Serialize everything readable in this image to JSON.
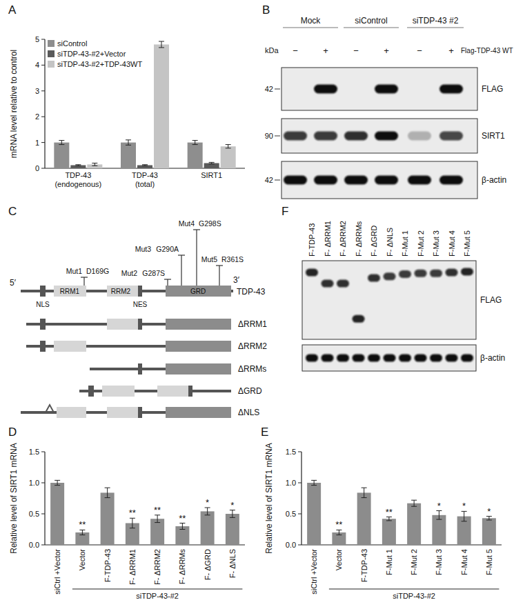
{
  "panel_labels": [
    "A",
    "B",
    "C",
    "D",
    "E",
    "F"
  ],
  "chart_data": [
    {
      "type": "bar",
      "y_label": "mRNA level relative to control",
      "categories": [
        "TDP-43 (endogenous)",
        "TDP-43 (total)",
        "SIRT1"
      ],
      "series": [
        {
          "name": "siControl",
          "color": "#8e8e8e",
          "values": [
            1.0,
            1.0,
            1.0
          ],
          "errors": [
            0.08,
            0.1,
            0.08
          ]
        },
        {
          "name": "siTDP-43-#2+Vector",
          "color": "#5a5a5a",
          "values": [
            0.12,
            0.12,
            0.2
          ],
          "errors": [
            0.02,
            0.02,
            0.03
          ]
        },
        {
          "name": "siTDP-43-#2+TDP-43WT",
          "color": "#c4c4c4",
          "values": [
            0.15,
            4.8,
            0.85
          ],
          "errors": [
            0.05,
            0.12,
            0.07
          ]
        }
      ],
      "ylim": [
        0,
        5
      ],
      "yticks": [
        0,
        1,
        2,
        3,
        4,
        5
      ],
      "legend": "top-left"
    },
    {
      "type": "bar",
      "y_label": "Relative level of SIRT1 mRNA",
      "categories": [
        "siCtrl +Vector",
        "Vector",
        "F-TDP-43",
        "F- ΔRRM1",
        "F- ΔRRM2",
        "F- ΔRRMs",
        "F- ΔGRD",
        "F- ΔNLS"
      ],
      "values": [
        1.0,
        0.2,
        0.84,
        0.35,
        0.42,
        0.3,
        0.54,
        0.5
      ],
      "errors": [
        0.04,
        0.04,
        0.08,
        0.08,
        0.06,
        0.05,
        0.06,
        0.06
      ],
      "annotations": [
        null,
        "**",
        null,
        "**",
        "**",
        "**",
        "*",
        "*"
      ],
      "group_label": "siTDP-43-#2",
      "color": "#8c8c8c",
      "ylim": [
        0,
        1.5
      ],
      "yticks": [
        {
          "value": 0,
          "label": "0.0"
        },
        {
          "value": 0.5,
          "label": "0.5"
        },
        {
          "value": 1,
          "label": "1.0"
        },
        {
          "value": 1.5,
          "label": "1.5"
        }
      ]
    },
    {
      "type": "bar",
      "y_label": "Relative level of SIRT1 mRNA",
      "categories": [
        "siCtrl +Vector",
        "Vector",
        "F-TDP-43",
        "F-Mut 1",
        "F-Mut 2",
        "F-Mut 3",
        "F-Mut 4",
        "F-Mut 5"
      ],
      "values": [
        1.0,
        0.2,
        0.84,
        0.42,
        0.67,
        0.48,
        0.46,
        0.43
      ],
      "errors": [
        0.04,
        0.04,
        0.08,
        0.03,
        0.05,
        0.07,
        0.08,
        0.03
      ],
      "annotations": [
        null,
        "**",
        null,
        "**",
        null,
        "*",
        "*",
        "*"
      ],
      "group_label": "siTDP-43-#2",
      "color": "#8c8c8c",
      "ylim": [
        0,
        1.5
      ],
      "yticks": [
        {
          "value": 0,
          "label": "0.0"
        },
        {
          "value": 0.5,
          "label": "0.5"
        },
        {
          "value": 1,
          "label": "1.0"
        },
        {
          "value": 1.5,
          "label": "1.5"
        }
      ]
    }
  ],
  "blot_b": {
    "kda_label": "kDa",
    "columns": [
      "Mock",
      "siControl",
      "siTDP-43 #2"
    ],
    "lane_signs": [
      "−",
      "+",
      "−",
      "+",
      "−",
      "+"
    ],
    "treatment": "Flag-TDP-43 WT",
    "rows": [
      {
        "name": "FLAG",
        "kda": 42,
        "intensity": [
          0,
          1,
          0,
          1,
          0,
          1
        ]
      },
      {
        "name": "SIRT1",
        "kda": 90,
        "intensity": [
          0.8,
          0.8,
          0.85,
          1,
          0.25,
          0.75
        ]
      },
      {
        "name": "β-actin",
        "kda": 42,
        "intensity": [
          1,
          1,
          1,
          1,
          1,
          1
        ]
      }
    ]
  },
  "diagram_c": {
    "title": "TDP-43",
    "ends": [
      "5′",
      "3′"
    ],
    "domains": [
      "NLS",
      "RRM1",
      "RRM2",
      "NES",
      "GRD"
    ],
    "mutations": [
      {
        "name": "Mut1",
        "change": "D169G"
      },
      {
        "name": "Mut2",
        "change": "G287S"
      },
      {
        "name": "Mut3",
        "change": "G290A"
      },
      {
        "name": "Mut4",
        "change": "G298S"
      },
      {
        "name": "Mut5",
        "change": "R361S"
      }
    ],
    "constructs": [
      "ΔRRM1",
      "ΔRRM2",
      "ΔRRMs",
      "ΔGRD",
      "ΔNLS"
    ]
  },
  "blot_f": {
    "lanes": [
      "F-TDP-43",
      "F- ΔRRM1",
      "F- ΔRRM2",
      "F- ΔRRMs",
      "F- ΔGRD",
      "F- ΔNLS",
      "F-Mut 1",
      "F-Mut 2",
      "F-Mut 3",
      "F-Mut 4",
      "F-Mut 5"
    ],
    "rows": [
      {
        "name": "FLAG",
        "intensity": [
          0.9,
          0.85,
          0.85,
          0.9,
          0.85,
          0.8,
          0.8,
          0.8,
          0.8,
          0.85,
          0.9
        ],
        "migration": [
          0.15,
          0.29,
          0.29,
          0.74,
          0.22,
          0.2,
          0.17,
          0.16,
          0.16,
          0.15,
          0.14
        ]
      },
      {
        "name": "β-actin",
        "intensity": [
          1,
          1,
          1,
          1,
          1,
          1,
          1,
          1,
          1,
          1,
          1
        ]
      }
    ]
  }
}
